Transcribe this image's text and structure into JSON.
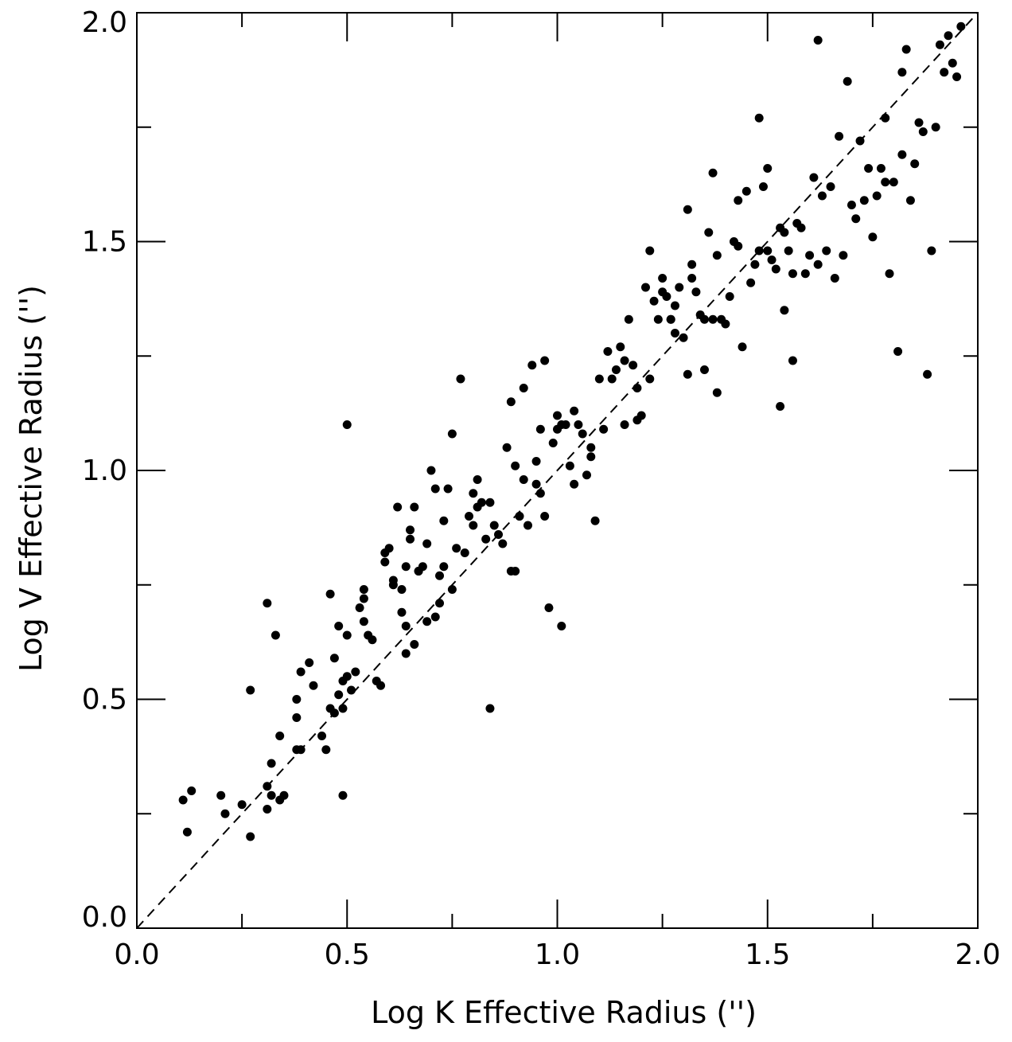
{
  "chart_data": {
    "type": "scatter",
    "xlabel": "Log K Effective Radius ('')",
    "ylabel": "Log V Effective Radius ('')",
    "xlim": [
      0.0,
      2.0
    ],
    "ylim": [
      0.0,
      2.0
    ],
    "x_ticks": [
      "0.0",
      "0.5",
      "1.0",
      "1.5",
      "2.0"
    ],
    "y_ticks": [
      "0.0",
      "0.5",
      "1.0",
      "1.5",
      "2.0"
    ],
    "x_minor_ticks": [
      0.25,
      0.75,
      1.25,
      1.75
    ],
    "y_minor_ticks": [
      0.25,
      0.75,
      1.25,
      1.75
    ],
    "reference_line": {
      "style": "dashed",
      "from": [
        0.0,
        0.0
      ],
      "to": [
        2.0,
        2.0
      ]
    },
    "marker_color": "#000000",
    "series": [
      {
        "points": [
          [
            0.11,
            0.28
          ],
          [
            0.12,
            0.21
          ],
          [
            0.13,
            0.3
          ],
          [
            0.2,
            0.29
          ],
          [
            0.21,
            0.25
          ],
          [
            0.25,
            0.27
          ],
          [
            0.27,
            0.2
          ],
          [
            0.27,
            0.52
          ],
          [
            0.31,
            0.31
          ],
          [
            0.31,
            0.26
          ],
          [
            0.31,
            0.71
          ],
          [
            0.32,
            0.36
          ],
          [
            0.32,
            0.29
          ],
          [
            0.33,
            0.64
          ],
          [
            0.34,
            0.28
          ],
          [
            0.34,
            0.42
          ],
          [
            0.35,
            0.29
          ],
          [
            0.38,
            0.39
          ],
          [
            0.38,
            0.46
          ],
          [
            0.38,
            0.5
          ],
          [
            0.39,
            0.39
          ],
          [
            0.39,
            0.56
          ],
          [
            0.41,
            0.58
          ],
          [
            0.42,
            0.53
          ],
          [
            0.44,
            0.42
          ],
          [
            0.45,
            0.39
          ],
          [
            0.46,
            0.73
          ],
          [
            0.46,
            0.48
          ],
          [
            0.47,
            0.47
          ],
          [
            0.47,
            0.59
          ],
          [
            0.48,
            0.51
          ],
          [
            0.48,
            0.66
          ],
          [
            0.49,
            0.29
          ],
          [
            0.49,
            0.48
          ],
          [
            0.49,
            0.54
          ],
          [
            0.5,
            0.55
          ],
          [
            0.5,
            0.64
          ],
          [
            0.5,
            1.1
          ],
          [
            0.51,
            0.52
          ],
          [
            0.52,
            0.56
          ],
          [
            0.53,
            0.7
          ],
          [
            0.54,
            0.74
          ],
          [
            0.54,
            0.72
          ],
          [
            0.54,
            0.67
          ],
          [
            0.55,
            0.64
          ],
          [
            0.56,
            0.63
          ],
          [
            0.57,
            0.54
          ],
          [
            0.58,
            0.53
          ],
          [
            0.59,
            0.82
          ],
          [
            0.59,
            0.8
          ],
          [
            0.6,
            0.83
          ],
          [
            0.61,
            0.75
          ],
          [
            0.61,
            0.76
          ],
          [
            0.62,
            0.92
          ],
          [
            0.63,
            0.74
          ],
          [
            0.63,
            0.69
          ],
          [
            0.64,
            0.6
          ],
          [
            0.64,
            0.66
          ],
          [
            0.64,
            0.79
          ],
          [
            0.65,
            0.87
          ],
          [
            0.65,
            0.85
          ],
          [
            0.66,
            0.92
          ],
          [
            0.66,
            0.62
          ],
          [
            0.67,
            0.78
          ],
          [
            0.67,
            0.78
          ],
          [
            0.68,
            0.79
          ],
          [
            0.69,
            0.84
          ],
          [
            0.69,
            0.67
          ],
          [
            0.7,
            1.0
          ],
          [
            0.71,
            0.96
          ],
          [
            0.71,
            0.68
          ],
          [
            0.72,
            0.71
          ],
          [
            0.72,
            0.77
          ],
          [
            0.73,
            0.79
          ],
          [
            0.73,
            0.89
          ],
          [
            0.74,
            0.96
          ],
          [
            0.75,
            0.74
          ],
          [
            0.75,
            1.08
          ],
          [
            0.76,
            0.83
          ],
          [
            0.77,
            1.2
          ],
          [
            0.78,
            0.82
          ],
          [
            0.79,
            0.9
          ],
          [
            0.8,
            0.95
          ],
          [
            0.8,
            0.88
          ],
          [
            0.81,
            0.92
          ],
          [
            0.81,
            0.98
          ],
          [
            0.82,
            0.93
          ],
          [
            0.83,
            0.85
          ],
          [
            0.84,
            0.93
          ],
          [
            0.84,
            0.48
          ],
          [
            0.85,
            0.88
          ],
          [
            0.86,
            0.86
          ],
          [
            0.87,
            0.84
          ],
          [
            0.88,
            1.05
          ],
          [
            0.89,
            0.78
          ],
          [
            0.89,
            1.15
          ],
          [
            0.9,
            1.01
          ],
          [
            0.9,
            0.78
          ],
          [
            0.91,
            0.9
          ],
          [
            0.91,
            0.9
          ],
          [
            0.92,
            1.18
          ],
          [
            0.92,
            0.98
          ],
          [
            0.93,
            0.88
          ],
          [
            0.94,
            1.23
          ],
          [
            0.95,
            0.97
          ],
          [
            0.95,
            1.02
          ],
          [
            0.96,
            1.09
          ],
          [
            0.96,
            0.95
          ],
          [
            0.97,
            1.24
          ],
          [
            0.97,
            0.9
          ],
          [
            0.98,
            0.7
          ],
          [
            0.99,
            1.06
          ],
          [
            1.0,
            1.09
          ],
          [
            1.0,
            1.12
          ],
          [
            1.01,
            1.1
          ],
          [
            1.01,
            0.66
          ],
          [
            1.02,
            1.1
          ],
          [
            1.03,
            1.01
          ],
          [
            1.04,
            1.13
          ],
          [
            1.04,
            0.97
          ],
          [
            1.05,
            1.1
          ],
          [
            1.06,
            1.08
          ],
          [
            1.07,
            0.99
          ],
          [
            1.08,
            1.03
          ],
          [
            1.08,
            1.05
          ],
          [
            1.09,
            0.89
          ],
          [
            1.1,
            1.2
          ],
          [
            1.11,
            1.09
          ],
          [
            1.12,
            1.26
          ],
          [
            1.13,
            1.2
          ],
          [
            1.14,
            1.22
          ],
          [
            1.15,
            1.27
          ],
          [
            1.16,
            1.1
          ],
          [
            1.16,
            1.24
          ],
          [
            1.17,
            1.33
          ],
          [
            1.18,
            1.23
          ],
          [
            1.19,
            1.11
          ],
          [
            1.19,
            1.18
          ],
          [
            1.2,
            1.12
          ],
          [
            1.21,
            1.4
          ],
          [
            1.22,
            1.48
          ],
          [
            1.22,
            1.2
          ],
          [
            1.23,
            1.37
          ],
          [
            1.24,
            1.33
          ],
          [
            1.25,
            1.39
          ],
          [
            1.25,
            1.42
          ],
          [
            1.26,
            1.38
          ],
          [
            1.27,
            1.33
          ],
          [
            1.27,
            1.33
          ],
          [
            1.28,
            1.3
          ],
          [
            1.28,
            1.36
          ],
          [
            1.29,
            1.4
          ],
          [
            1.3,
            1.29
          ],
          [
            1.31,
            1.21
          ],
          [
            1.31,
            1.57
          ],
          [
            1.32,
            1.45
          ],
          [
            1.32,
            1.42
          ],
          [
            1.33,
            1.39
          ],
          [
            1.34,
            1.34
          ],
          [
            1.35,
            1.33
          ],
          [
            1.35,
            1.22
          ],
          [
            1.36,
            1.52
          ],
          [
            1.37,
            1.65
          ],
          [
            1.37,
            1.33
          ],
          [
            1.38,
            1.47
          ],
          [
            1.38,
            1.17
          ],
          [
            1.39,
            1.33
          ],
          [
            1.4,
            1.32
          ],
          [
            1.41,
            1.38
          ],
          [
            1.42,
            1.5
          ],
          [
            1.43,
            1.49
          ],
          [
            1.43,
            1.59
          ],
          [
            1.44,
            1.27
          ],
          [
            1.45,
            1.61
          ],
          [
            1.46,
            1.41
          ],
          [
            1.47,
            1.45
          ],
          [
            1.48,
            1.48
          ],
          [
            1.48,
            1.77
          ],
          [
            1.49,
            1.62
          ],
          [
            1.5,
            1.66
          ],
          [
            1.5,
            1.48
          ],
          [
            1.51,
            1.46
          ],
          [
            1.52,
            1.44
          ],
          [
            1.53,
            1.53
          ],
          [
            1.53,
            1.14
          ],
          [
            1.54,
            1.52
          ],
          [
            1.54,
            1.35
          ],
          [
            1.55,
            1.48
          ],
          [
            1.56,
            1.24
          ],
          [
            1.56,
            1.43
          ],
          [
            1.57,
            1.54
          ],
          [
            1.58,
            1.53
          ],
          [
            1.59,
            1.43
          ],
          [
            1.6,
            1.47
          ],
          [
            1.61,
            1.64
          ],
          [
            1.62,
            1.45
          ],
          [
            1.62,
            1.94
          ],
          [
            1.63,
            1.6
          ],
          [
            1.64,
            1.48
          ],
          [
            1.65,
            1.62
          ],
          [
            1.66,
            1.42
          ],
          [
            1.67,
            1.73
          ],
          [
            1.68,
            1.47
          ],
          [
            1.69,
            1.85
          ],
          [
            1.7,
            1.58
          ],
          [
            1.71,
            1.55
          ],
          [
            1.72,
            1.72
          ],
          [
            1.73,
            1.59
          ],
          [
            1.74,
            1.66
          ],
          [
            1.75,
            1.51
          ],
          [
            1.76,
            1.6
          ],
          [
            1.77,
            1.66
          ],
          [
            1.78,
            1.63
          ],
          [
            1.78,
            1.77
          ],
          [
            1.79,
            1.43
          ],
          [
            1.8,
            1.63
          ],
          [
            1.81,
            1.26
          ],
          [
            1.82,
            1.69
          ],
          [
            1.82,
            1.87
          ],
          [
            1.83,
            1.92
          ],
          [
            1.84,
            1.59
          ],
          [
            1.85,
            1.67
          ],
          [
            1.86,
            1.76
          ],
          [
            1.87,
            1.74
          ],
          [
            1.88,
            1.21
          ],
          [
            1.89,
            1.48
          ],
          [
            1.9,
            1.75
          ],
          [
            1.91,
            1.93
          ],
          [
            1.92,
            1.87
          ],
          [
            1.93,
            1.95
          ],
          [
            1.94,
            1.89
          ],
          [
            1.95,
            1.86
          ],
          [
            1.96,
            1.97
          ]
        ]
      }
    ]
  }
}
